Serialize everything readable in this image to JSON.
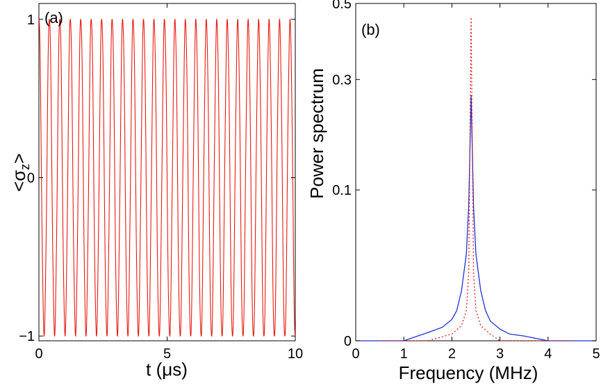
{
  "chart_data": [
    {
      "id": "a",
      "type": "line",
      "panel_label": "(a)",
      "xlabel": "t  (μs)",
      "ylabel": "<σz>",
      "ylabel_main": "<σ",
      "ylabel_sub": "z",
      "ylabel_end": ">",
      "xlim": [
        0,
        10
      ],
      "ylim": [
        -1.03,
        1.1
      ],
      "xticks": [
        0,
        5,
        10
      ],
      "xtick_labels": [
        "0",
        "5",
        "10"
      ],
      "yticks": [
        -1,
        0,
        1
      ],
      "ytick_labels": [
        "−1",
        "0",
        "1"
      ],
      "grid": false,
      "series": [
        {
          "name": "<σz>(t)",
          "color": "#e8190d",
          "style": "solid",
          "frequency_MHz": 2.45,
          "amplitude": 1.0,
          "t_start": 0,
          "t_end": 10,
          "description_values": "cosine-like oscillation between -1 and 1, ~24.5 periods over 0-10 μs"
        }
      ]
    },
    {
      "id": "b",
      "type": "line",
      "panel_label": "(b)",
      "xlabel": "Frequency  (MHz)",
      "ylabel": "Power spectrum",
      "xlim": [
        0,
        5
      ],
      "ylim": [
        0,
        0.5
      ],
      "yscale": "sqrt",
      "xticks": [
        0,
        1,
        2,
        3,
        4,
        5
      ],
      "xtick_labels": [
        "0",
        "1",
        "2",
        "3",
        "4",
        "5"
      ],
      "yticks": [
        0,
        0.1,
        0.3,
        0.5
      ],
      "ytick_labels": [
        "0",
        "0.1",
        "0.3",
        "0.5"
      ],
      "grid": false,
      "series": [
        {
          "name": "solid",
          "color": "#1f2fd6",
          "style": "solid",
          "x": [
            0,
            1.0,
            1.5,
            1.8,
            2.0,
            2.1,
            2.2,
            2.3,
            2.35,
            2.4,
            2.45,
            2.5,
            2.6,
            2.7,
            2.8,
            3.0,
            3.2,
            3.5,
            4.0,
            5.0
          ],
          "y": [
            0.0,
            0.0,
            0.0003,
            0.0008,
            0.002,
            0.004,
            0.011,
            0.033,
            0.08,
            0.265,
            0.08,
            0.033,
            0.011,
            0.004,
            0.0017,
            0.0006,
            0.0002,
            0.0001,
            0.0,
            0.0
          ]
        },
        {
          "name": "dotted",
          "color": "#e8190d",
          "style": "dotted",
          "x": [
            0.5,
            1.5,
            2.0,
            2.2,
            2.3,
            2.35,
            2.4,
            2.45,
            2.5,
            2.6,
            2.8,
            3.0,
            4.0,
            4.5
          ],
          "y": [
            0.0,
            0.0,
            0.0002,
            0.001,
            0.004,
            0.02,
            0.46,
            0.02,
            0.004,
            0.001,
            0.0002,
            0.0,
            0.0,
            0.0
          ]
        }
      ]
    }
  ]
}
